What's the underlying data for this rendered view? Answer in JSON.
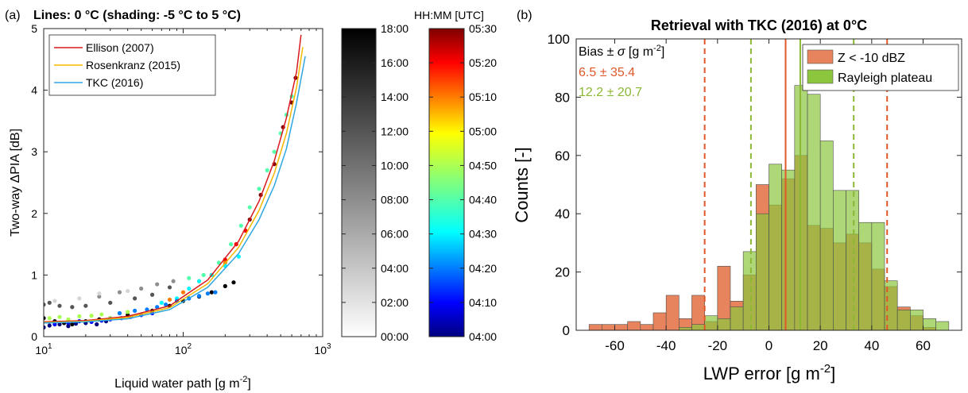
{
  "colors": {
    "ellison": "#d7191c",
    "rosenkranz": "#f5b800",
    "tkc": "#2ea7e0",
    "z_bars": "#e8845d",
    "rayleigh_bars": "#8cc63f",
    "z_text": "#e0582a",
    "rayleigh_text": "#8ab833"
  },
  "chart_data": [
    {
      "id": "a",
      "type": "scatter",
      "panel_label": "(a)",
      "title": "Lines: 0 °C (shading: -5 °C to 5 °C)",
      "xlabel": "Liquid water path [g m",
      "xlabel_sup": "-2",
      "xlabel_end": "]",
      "ylabel": "Two-way ΔPIA [dB]",
      "xscale": "log",
      "xlim": [
        10,
        1000
      ],
      "ylim": [
        0,
        5
      ],
      "xticks": [
        {
          "value": 10,
          "base": "10",
          "exp": "1"
        },
        {
          "value": 100,
          "base": "10",
          "exp": "2"
        },
        {
          "value": 1000,
          "base": "10",
          "exp": "3"
        }
      ],
      "yticks": [
        0,
        1,
        2,
        3,
        4,
        5
      ],
      "legend": {
        "position": "top-left",
        "entries": [
          "Ellison (2007)",
          "Rosenkranz (2015)",
          "TKC (2016)"
        ]
      },
      "series": [
        {
          "name": "Ellison (2007)",
          "kind": "line",
          "x": [
            10,
            20,
            40,
            80,
            150,
            250,
            350,
            450,
            550,
            650,
            700
          ],
          "y": [
            0.24,
            0.26,
            0.33,
            0.5,
            0.92,
            1.55,
            2.2,
            2.85,
            3.55,
            4.3,
            4.9
          ]
        },
        {
          "name": "Rosenkranz (2015)",
          "kind": "line",
          "x": [
            10,
            20,
            40,
            80,
            150,
            250,
            350,
            450,
            550,
            650,
            720
          ],
          "y": [
            0.23,
            0.25,
            0.31,
            0.47,
            0.86,
            1.45,
            2.05,
            2.65,
            3.3,
            4.05,
            4.7
          ]
        },
        {
          "name": "TKC (2016)",
          "kind": "line",
          "x": [
            10,
            20,
            40,
            80,
            150,
            250,
            350,
            450,
            550,
            650,
            750
          ],
          "y": [
            0.22,
            0.24,
            0.29,
            0.44,
            0.8,
            1.35,
            1.9,
            2.45,
            3.05,
            3.8,
            4.55
          ]
        }
      ],
      "points": [
        {
          "time": "05:30",
          "x": [
            300,
            360,
            450,
            520,
            600,
            640
          ],
          "y": [
            1.9,
            2.3,
            2.8,
            3.4,
            3.8,
            4.2
          ]
        },
        {
          "time": "05:20",
          "x": [
            160,
            200,
            240,
            280
          ],
          "y": [
            1.0,
            1.25,
            1.5,
            1.72
          ]
        },
        {
          "time": "05:10",
          "x": [
            80,
            100,
            130,
            160,
            200
          ],
          "y": [
            0.6,
            0.72,
            0.9,
            1.0,
            1.2
          ]
        },
        {
          "time": "04:50",
          "x": [
            11,
            13,
            15,
            18,
            22,
            26,
            30,
            35,
            40
          ],
          "y": [
            0.3,
            0.32,
            0.28,
            0.33,
            0.34,
            0.36,
            0.3,
            0.38,
            0.4
          ]
        },
        {
          "time": "04:40",
          "x": [
            110,
            140,
            180,
            220,
            260,
            300,
            350,
            400,
            450,
            500,
            550,
            600
          ],
          "y": [
            0.95,
            1.0,
            1.2,
            1.5,
            1.8,
            2.1,
            2.4,
            2.7,
            3.0,
            3.3,
            3.6,
            3.9
          ]
        },
        {
          "time": "04:30",
          "x": [
            70,
            90,
            110,
            130,
            160,
            200,
            250
          ],
          "y": [
            0.55,
            0.62,
            0.78,
            0.9,
            1.0,
            1.15,
            1.3
          ]
        },
        {
          "time": "04:20",
          "x": [
            35,
            45,
            55,
            65,
            75,
            90,
            110,
            130,
            150,
            170
          ],
          "y": [
            0.38,
            0.42,
            0.44,
            0.48,
            0.52,
            0.58,
            0.62,
            0.66,
            0.7,
            0.72
          ]
        },
        {
          "time": "04:10",
          "x": [
            12,
            15,
            18,
            22,
            26,
            30,
            36,
            42,
            50,
            60
          ],
          "y": [
            0.2,
            0.22,
            0.25,
            0.24,
            0.26,
            0.28,
            0.3,
            0.32,
            0.35,
            0.38
          ]
        },
        {
          "time": "04:00",
          "x": [
            10,
            11,
            13,
            15,
            17,
            20,
            24,
            28
          ],
          "y": [
            0.15,
            0.18,
            0.2,
            0.17,
            0.21,
            0.22,
            0.2,
            0.25
          ]
        },
        {
          "time": "18:00",
          "x": [
            10,
            12,
            14,
            16,
            20,
            25,
            30,
            40,
            60,
            80,
            100,
            130,
            160,
            200,
            230
          ],
          "y": [
            0.3,
            0.25,
            0.22,
            0.2,
            0.25,
            0.28,
            0.3,
            0.35,
            0.42,
            0.5,
            0.58,
            0.65,
            0.72,
            0.82,
            0.88
          ]
        },
        {
          "time": "12:00",
          "x": [
            10,
            11,
            13,
            16,
            20,
            30,
            45,
            60,
            80
          ],
          "y": [
            0.52,
            0.55,
            0.5,
            0.48,
            0.5,
            0.55,
            0.62,
            0.68,
            0.8
          ]
        },
        {
          "time": "08:00",
          "x": [
            25,
            35,
            50,
            65,
            85
          ],
          "y": [
            0.65,
            0.72,
            0.78,
            0.85,
            0.9
          ]
        },
        {
          "time": "03:00",
          "x": [
            12,
            18,
            25,
            40
          ],
          "y": [
            0.58,
            0.62,
            0.7,
            0.74
          ]
        }
      ]
    },
    {
      "id": "colorbar-gray",
      "type": "heatmap",
      "title": "",
      "ticks": [
        "00:00",
        "02:00",
        "04:00",
        "06:00",
        "08:00",
        "10:00",
        "12:00",
        "14:00",
        "16:00",
        "18:00"
      ]
    },
    {
      "id": "colorbar-jet",
      "type": "heatmap",
      "title": "HH:MM [UTC]",
      "ticks": [
        "04:00",
        "04:10",
        "04:20",
        "04:30",
        "04:40",
        "04:50",
        "05:00",
        "05:10",
        "05:20",
        "05:30"
      ]
    },
    {
      "id": "b",
      "type": "bar",
      "panel_label": "(b)",
      "title": "Retrieval with TKC (2016) at 0°C",
      "xlabel": "LWP error [g m",
      "xlabel_sup": "-2",
      "xlabel_end": "]",
      "ylabel": "Counts [-]",
      "xlim": [
        -75,
        75
      ],
      "ylim": [
        0,
        100
      ],
      "xticks": [
        -60,
        -40,
        -20,
        0,
        20,
        40,
        60
      ],
      "yticks": [
        0,
        20,
        40,
        60,
        80,
        100
      ],
      "bin_width": 5,
      "bin_left_edges": [
        -70,
        -65,
        -60,
        -55,
        -50,
        -45,
        -40,
        -35,
        -30,
        -25,
        -20,
        -15,
        -10,
        -5,
        0,
        5,
        10,
        15,
        20,
        25,
        30,
        35,
        40,
        45,
        50,
        55,
        60,
        65
      ],
      "legend": {
        "position": "top-right",
        "entries": [
          "Z < -10 dBZ",
          "Rayleigh plateau"
        ]
      },
      "series": [
        {
          "name": "Z < -10 dBZ",
          "values": [
            2,
            2,
            2,
            3,
            2,
            6,
            12,
            4,
            12,
            3,
            22,
            10,
            19,
            50,
            43,
            52,
            60,
            36,
            35,
            30,
            33,
            30,
            21,
            15,
            8,
            5,
            1,
            0
          ]
        },
        {
          "name": "Rayleigh plateau",
          "values": [
            0,
            0,
            0,
            0,
            0,
            0,
            0,
            1,
            2,
            5,
            4,
            8,
            27,
            40,
            57,
            55,
            84,
            81,
            65,
            48,
            48,
            37,
            37,
            17,
            7,
            7,
            4,
            3
          ]
        }
      ],
      "stats": {
        "heading": "Bias",
        "pm": "±",
        "sigma": "σ",
        "units": "[g m",
        "units_sup": "-2",
        "units_end": "]",
        "z": {
          "bias": "6.5",
          "sigma": "35.4",
          "mean": 6.5,
          "lo": -25,
          "hi": 46
        },
        "rayleigh": {
          "bias": "12.2",
          "sigma": "20.7",
          "mean": 12.2,
          "lo": -7,
          "hi": 33
        }
      }
    }
  ]
}
